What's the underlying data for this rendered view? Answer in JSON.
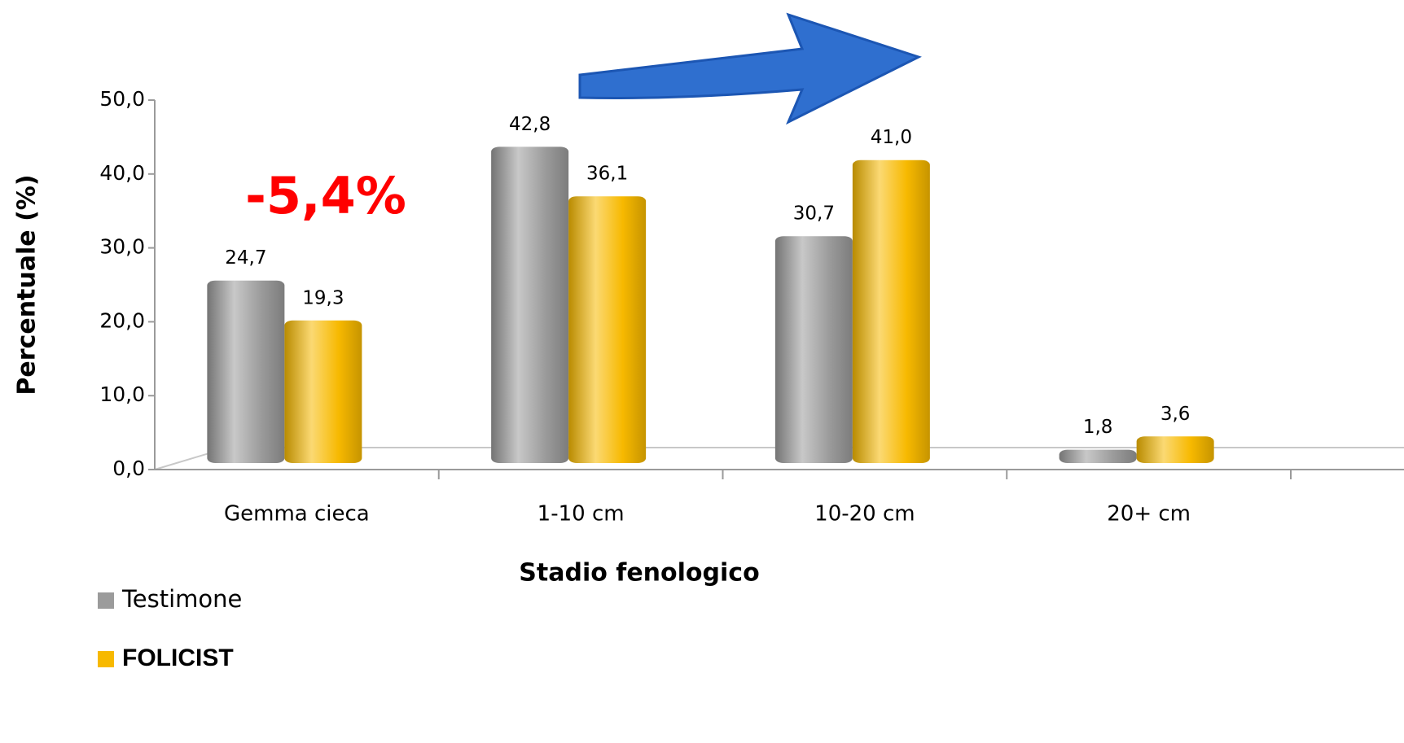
{
  "chart_data": {
    "type": "bar",
    "annotation": "-5,4%",
    "x_label": "Stadio fenologico",
    "y_label": "Percentuale (%)",
    "categories": [
      "Gemma cieca",
      "1-10 cm",
      "10-20 cm",
      "20+ cm"
    ],
    "series": [
      {
        "name": "Testimone",
        "color": "#9b9b9b",
        "values": [
          24.7,
          42.8,
          30.7,
          1.8
        ],
        "value_labels": [
          "24,7",
          "42,8",
          "30,7",
          "1,8"
        ]
      },
      {
        "name": "FOLICIST",
        "color": "#f7b900",
        "values": [
          19.3,
          36.1,
          41.0,
          3.6
        ],
        "value_labels": [
          "19,3",
          "36,1",
          "41,0",
          "3,6"
        ]
      }
    ],
    "ylim": [
      0,
      50
    ],
    "yticks": [
      {
        "value": 0,
        "label": "0,0"
      },
      {
        "value": 10,
        "label": "10,0"
      },
      {
        "value": 20,
        "label": "20,0"
      },
      {
        "value": 30,
        "label": "30,0"
      },
      {
        "value": 40,
        "label": "40,0"
      },
      {
        "value": 50,
        "label": "50,0"
      }
    ],
    "legend": "bottom-left",
    "grid": false
  }
}
